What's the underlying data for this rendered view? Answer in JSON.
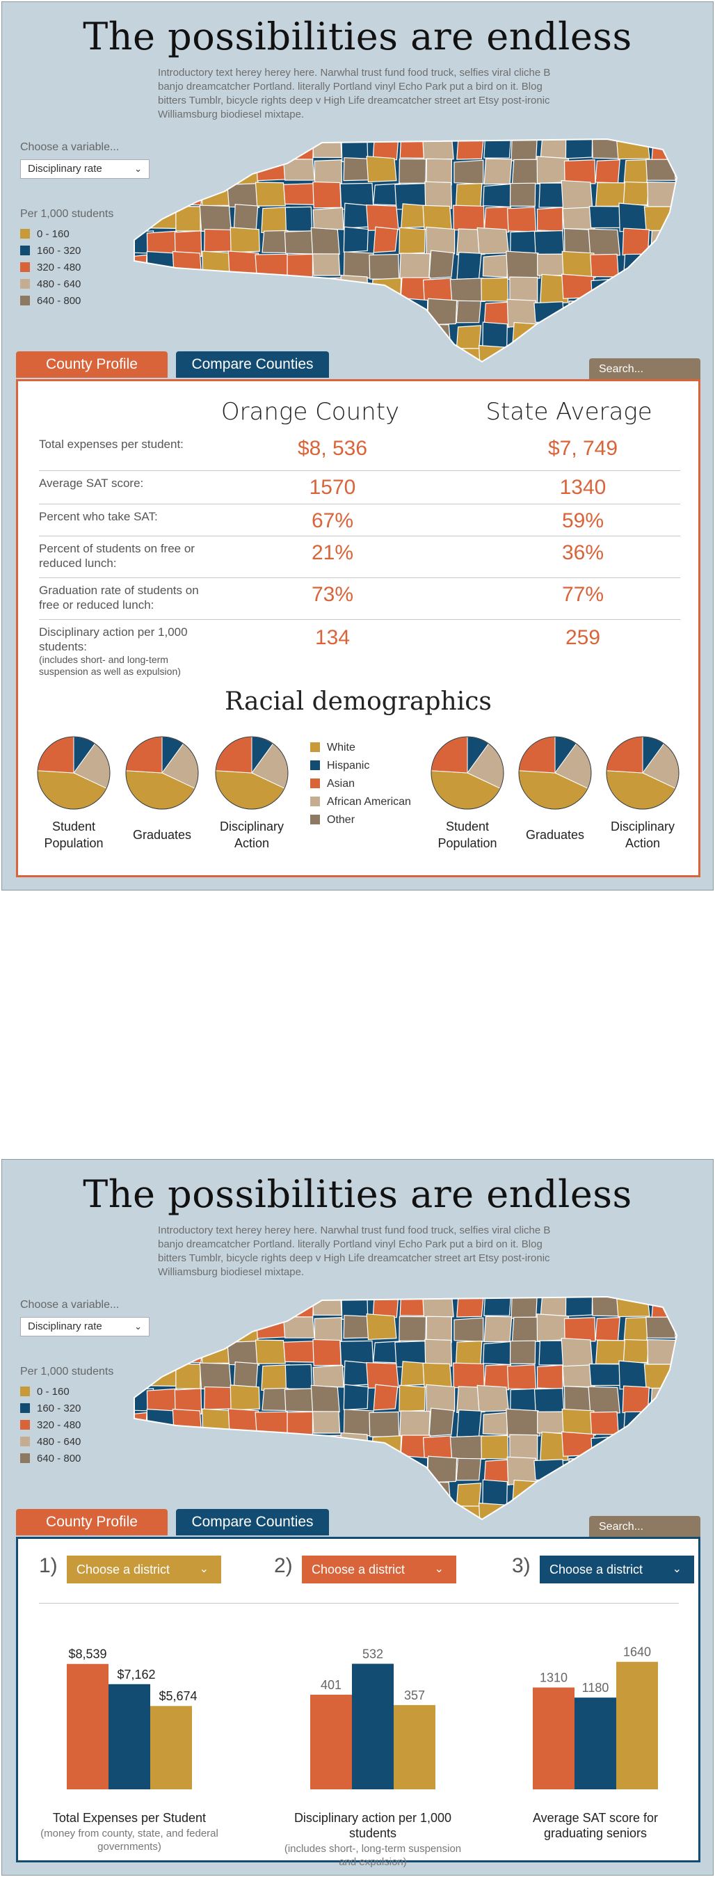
{
  "page": {
    "title": "The possibilities are endless",
    "intro": "Introductory text herey herey here. Narwhal trust fund food truck, selfies viral cliche B banjo dreamcatcher Portland. literally Portland vinyl Echo Park put a bird on it. Blog bitters Tumblr, bicycle rights  deep v High Life dreamcatcher street art Etsy post-ironic Williamsburg biodiesel mixtape.",
    "chooser_label": "Choose a variable...",
    "chooser_value": "Disciplinary rate",
    "legend_title": "Per 1,000 students",
    "legend": [
      {
        "label": "0 - 160",
        "color": "#c99a3a"
      },
      {
        "label": "160 - 320",
        "color": "#134c72"
      },
      {
        "label": "320 - 480",
        "color": "#d9643a"
      },
      {
        "label": "480 - 640",
        "color": "#c4ad90"
      },
      {
        "label": "640 - 800",
        "color": "#8e7a63"
      }
    ],
    "tabs": {
      "profile": "County Profile",
      "compare": "Compare Counties"
    },
    "search_placeholder": "Search..."
  },
  "profile": {
    "col1": "Orange County",
    "col2": "State Average",
    "rows": [
      {
        "label": "Total expenses per student:",
        "county": "$8, 536",
        "state": "$7, 749"
      },
      {
        "label": "Average SAT score:",
        "county": "1570",
        "state": "1340"
      },
      {
        "label": "Percent who take SAT:",
        "county": "67%",
        "state": "59%"
      },
      {
        "label": "Percent of students on free or reduced lunch:",
        "county": "21%",
        "state": "36%"
      },
      {
        "label": "Graduation rate of students on free or reduced lunch:",
        "county": "73%",
        "state": "77%"
      },
      {
        "label": "Disciplinary action per 1,000 students:",
        "note": "(includes short- and long-term suspension as well as expulsion)",
        "county": "134",
        "state": "259"
      }
    ],
    "demo_title": "Racial demographics",
    "demo_legend": [
      {
        "label": "White",
        "color": "#c99a3a"
      },
      {
        "label": "Hispanic",
        "color": "#134c72"
      },
      {
        "label": "Asian",
        "color": "#d9643a"
      },
      {
        "label": "African American",
        "color": "#c4ad90"
      },
      {
        "label": "Other",
        "color": "#8e7a63"
      }
    ],
    "pie_labels": [
      "Student Population",
      "Graduates",
      "Disciplinary Action",
      "Student Population",
      "Graduates",
      "Disciplinary Action"
    ]
  },
  "compare": {
    "selectors": [
      {
        "num": "1)",
        "label": "Choose a district",
        "color": "#c99a3a"
      },
      {
        "num": "2)",
        "label": "Choose a district",
        "color": "#d9643a"
      },
      {
        "num": "3)",
        "label": "Choose a district",
        "color": "#134c72"
      }
    ]
  },
  "chart_data": [
    {
      "type": "bar",
      "title": "Total Expenses per Student",
      "subtitle": "(money from county, state, and federal governments)",
      "categories": [
        "1",
        "2",
        "3"
      ],
      "values": [
        8539,
        7162,
        5674
      ],
      "labels": [
        "$8,539",
        "$7,162",
        "$5,674"
      ],
      "colors": [
        "#d9643a",
        "#134c72",
        "#c99a3a"
      ],
      "ylim": [
        0,
        9000
      ]
    },
    {
      "type": "bar",
      "title": "Disciplinary action per 1,000 students",
      "subtitle": "(includes short-, long-term suspension and expulsion)",
      "categories": [
        "1",
        "2",
        "3"
      ],
      "values": [
        401,
        532,
        357
      ],
      "labels": [
        "401",
        "532",
        "357"
      ],
      "colors": [
        "#d9643a",
        "#134c72",
        "#c99a3a"
      ],
      "ylim": [
        0,
        560
      ]
    },
    {
      "type": "bar",
      "title": "Average SAT score for graduating seniors",
      "subtitle": "",
      "categories": [
        "1",
        "2",
        "3"
      ],
      "values": [
        1310,
        1180,
        1640
      ],
      "labels": [
        "1310",
        "1180",
        "1640"
      ],
      "colors": [
        "#d9643a",
        "#134c72",
        "#c99a3a"
      ],
      "ylim": [
        0,
        1700
      ]
    }
  ]
}
